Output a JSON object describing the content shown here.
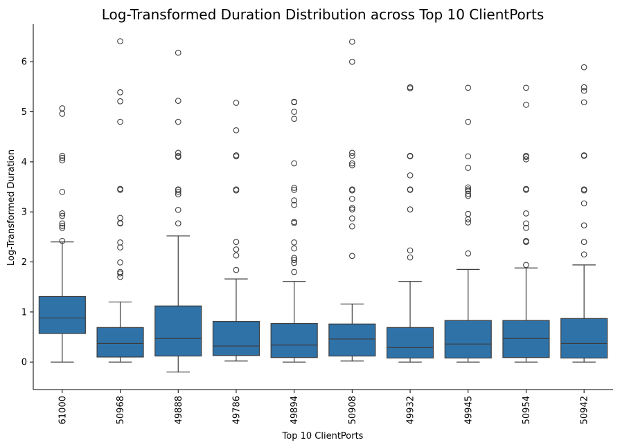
{
  "chart_data": {
    "type": "box",
    "title": "Log-Transformed Duration Distribution across Top 10 ClientPorts",
    "xlabel": "Top 10 ClientPorts",
    "ylabel": "Log-Transformed Duration",
    "ylim": [
      -0.55,
      6.75
    ],
    "yticks": [
      0,
      1,
      2,
      3,
      4,
      5,
      6
    ],
    "grid": false,
    "box_color": "#2f72a8",
    "line_color": "#3d3d3d",
    "categories": [
      "61000",
      "50968",
      "49888",
      "49786",
      "49894",
      "50908",
      "49932",
      "49945",
      "50954",
      "50942"
    ],
    "boxes": [
      {
        "whisker_low": 0.0,
        "q1": 0.57,
        "median": 0.88,
        "q3": 1.31,
        "whisker_high": 2.4,
        "outliers": [
          2.42,
          2.68,
          2.72,
          2.77,
          2.92,
          2.97,
          3.4,
          4.03,
          4.08,
          4.12,
          4.96,
          5.07
        ]
      },
      {
        "whisker_low": 0.0,
        "q1": 0.1,
        "median": 0.37,
        "q3": 0.69,
        "whisker_high": 1.2,
        "outliers": [
          1.7,
          1.77,
          1.8,
          1.99,
          2.29,
          2.39,
          2.77,
          2.78,
          2.88,
          3.44,
          3.46,
          4.8,
          5.21,
          5.39,
          6.41
        ]
      },
      {
        "whisker_low": -0.2,
        "q1": 0.12,
        "median": 0.47,
        "q3": 1.12,
        "whisker_high": 2.52,
        "outliers": [
          2.77,
          3.04,
          3.35,
          3.4,
          3.44,
          3.45,
          4.1,
          4.12,
          4.18,
          4.8,
          5.22,
          6.18
        ]
      },
      {
        "whisker_low": 0.02,
        "q1": 0.13,
        "median": 0.32,
        "q3": 0.81,
        "whisker_high": 1.66,
        "outliers": [
          1.84,
          2.13,
          2.25,
          2.4,
          3.43,
          3.45,
          4.11,
          4.13,
          4.63,
          5.18
        ]
      },
      {
        "whisker_low": 0.0,
        "q1": 0.09,
        "median": 0.34,
        "q3": 0.77,
        "whisker_high": 1.61,
        "outliers": [
          1.8,
          1.98,
          2.04,
          2.08,
          2.27,
          2.39,
          2.78,
          2.8,
          3.14,
          3.23,
          3.44,
          3.48,
          3.97,
          4.86,
          5.0,
          5.19,
          5.2
        ]
      },
      {
        "whisker_low": 0.02,
        "q1": 0.12,
        "median": 0.46,
        "q3": 0.76,
        "whisker_high": 1.16,
        "outliers": [
          2.12,
          2.71,
          2.87,
          3.05,
          3.08,
          3.26,
          3.43,
          3.45,
          3.93,
          3.97,
          4.12,
          4.18,
          6.0,
          6.4
        ]
      },
      {
        "whisker_low": 0.0,
        "q1": 0.08,
        "median": 0.29,
        "q3": 0.69,
        "whisker_high": 1.61,
        "outliers": [
          2.09,
          2.23,
          3.05,
          3.44,
          3.45,
          3.73,
          4.11,
          4.12,
          5.47,
          5.49
        ]
      },
      {
        "whisker_low": 0.0,
        "q1": 0.08,
        "median": 0.36,
        "q3": 0.83,
        "whisker_high": 1.85,
        "outliers": [
          2.17,
          2.79,
          2.85,
          2.96,
          3.32,
          3.36,
          3.42,
          3.45,
          3.49,
          3.88,
          4.11,
          4.8,
          5.48
        ]
      },
      {
        "whisker_low": 0.0,
        "q1": 0.09,
        "median": 0.47,
        "q3": 0.83,
        "whisker_high": 1.88,
        "outliers": [
          1.94,
          2.4,
          2.42,
          2.68,
          2.77,
          2.97,
          3.44,
          3.46,
          4.05,
          4.1,
          4.12,
          5.14,
          5.48
        ]
      },
      {
        "whisker_low": 0.0,
        "q1": 0.08,
        "median": 0.37,
        "q3": 0.87,
        "whisker_high": 1.94,
        "outliers": [
          2.15,
          2.4,
          2.73,
          3.17,
          3.43,
          3.45,
          4.12,
          4.13,
          5.19,
          5.42,
          5.49,
          5.89
        ]
      }
    ]
  }
}
